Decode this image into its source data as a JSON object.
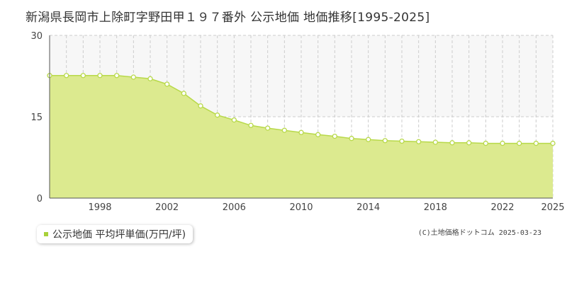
{
  "title": "新潟県長岡市上除町字野田甲１９７番外 公示地価 地価推移[1995-2025]",
  "legend": {
    "label": "公示地価 平均坪単価(万円/坪)"
  },
  "copyright": "(C)土地価格ドットコム 2025-03-23",
  "colors": {
    "fill": "#dcea8f",
    "line": "#b8d94a",
    "marker_fill": "#ffffff",
    "marker_stroke": "#b8d94a",
    "legend_marker": "#a8d13a",
    "band": "#f7f7f7",
    "grid": "#cccccc",
    "axis": "#555555"
  },
  "chart_data": {
    "type": "area",
    "title": "",
    "xlabel": "",
    "ylabel": "",
    "xlim": [
      1995,
      2025
    ],
    "ylim": [
      0,
      30
    ],
    "yticks": [
      0,
      15,
      30
    ],
    "xticks": [
      1998,
      2002,
      2006,
      2010,
      2014,
      2018,
      2022,
      2025
    ],
    "x": [
      1995,
      1996,
      1997,
      1998,
      1999,
      2000,
      2001,
      2002,
      2003,
      2004,
      2005,
      2006,
      2007,
      2008,
      2009,
      2010,
      2011,
      2012,
      2013,
      2014,
      2015,
      2016,
      2017,
      2018,
      2019,
      2020,
      2021,
      2022,
      2023,
      2024,
      2025
    ],
    "series": [
      {
        "name": "公示地価 平均坪単価(万円/坪)",
        "values": [
          22.6,
          22.6,
          22.6,
          22.6,
          22.6,
          22.3,
          22.0,
          21.0,
          19.3,
          17.0,
          15.3,
          14.4,
          13.4,
          12.9,
          12.5,
          12.1,
          11.7,
          11.4,
          11.0,
          10.8,
          10.6,
          10.5,
          10.4,
          10.3,
          10.2,
          10.2,
          10.1,
          10.1,
          10.1,
          10.1,
          10.1
        ]
      }
    ],
    "grid": true,
    "legend_position": "bottom-left"
  }
}
